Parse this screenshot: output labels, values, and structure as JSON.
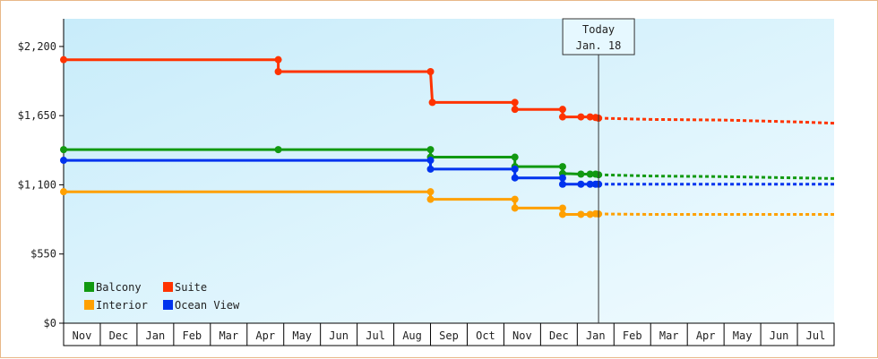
{
  "chart_data": {
    "type": "line",
    "title": "",
    "xlabel": "",
    "ylabel": "",
    "ylim": [
      0,
      2420
    ],
    "y_ticks": [
      "$0",
      "$550",
      "$1,100",
      "$1,650",
      "$2,200"
    ],
    "y_tick_values": [
      0,
      550,
      1100,
      1650,
      2200
    ],
    "x_tick_labels": [
      "Nov",
      "Dec",
      "Jan",
      "Feb",
      "Mar",
      "Apr",
      "May",
      "Jun",
      "Jul",
      "Aug",
      "Sep",
      "Oct",
      "Nov",
      "Dec",
      "Jan",
      "Feb",
      "Mar",
      "Apr",
      "May",
      "Jun",
      "Jul"
    ],
    "x_range_months": [
      0,
      21
    ],
    "grid": false,
    "legend_position": "bottom-left",
    "today": {
      "line1": "Today",
      "line2": "Jan. 18",
      "x": 14.58
    },
    "colors": {
      "Balcony": "#119911",
      "Suite": "#ff3300",
      "Interior": "#ffa000",
      "Ocean View": "#0033ee"
    },
    "series": [
      {
        "name": "Balcony",
        "points": [
          [
            0,
            1380
          ],
          [
            5.85,
            1380
          ],
          [
            10.0,
            1380
          ],
          [
            10.0,
            1320
          ],
          [
            12.3,
            1320
          ],
          [
            12.3,
            1245
          ],
          [
            13.6,
            1245
          ],
          [
            13.6,
            1190
          ],
          [
            14.1,
            1185
          ],
          [
            14.35,
            1185
          ],
          [
            14.5,
            1185
          ],
          [
            14.58,
            1180
          ]
        ],
        "forecast": [
          [
            14.58,
            1180
          ],
          [
            16,
            1170
          ],
          [
            18,
            1165
          ],
          [
            20,
            1155
          ],
          [
            21,
            1150
          ]
        ]
      },
      {
        "name": "Suite",
        "points": [
          [
            0,
            2095
          ],
          [
            5.85,
            2095
          ],
          [
            5.85,
            2000
          ],
          [
            10.0,
            2000
          ],
          [
            10.05,
            1755
          ],
          [
            12.3,
            1755
          ],
          [
            12.3,
            1700
          ],
          [
            13.6,
            1700
          ],
          [
            13.6,
            1640
          ],
          [
            14.1,
            1640
          ],
          [
            14.35,
            1640
          ],
          [
            14.5,
            1635
          ],
          [
            14.58,
            1630
          ]
        ],
        "forecast": [
          [
            14.58,
            1630
          ],
          [
            16,
            1620
          ],
          [
            18,
            1615
          ],
          [
            20,
            1600
          ],
          [
            21,
            1590
          ]
        ]
      },
      {
        "name": "Interior",
        "points": [
          [
            0,
            1045
          ],
          [
            10.0,
            1045
          ],
          [
            10.0,
            985
          ],
          [
            12.3,
            985
          ],
          [
            12.3,
            915
          ],
          [
            13.6,
            915
          ],
          [
            13.6,
            865
          ],
          [
            14.1,
            865
          ],
          [
            14.35,
            865
          ],
          [
            14.5,
            870
          ],
          [
            14.58,
            868
          ]
        ],
        "forecast": [
          [
            14.58,
            868
          ],
          [
            16,
            865
          ],
          [
            18,
            865
          ],
          [
            20,
            865
          ],
          [
            21,
            865
          ]
        ]
      },
      {
        "name": "Ocean View",
        "points": [
          [
            0,
            1295
          ],
          [
            10.0,
            1295
          ],
          [
            10.0,
            1225
          ],
          [
            12.3,
            1225
          ],
          [
            12.3,
            1155
          ],
          [
            13.6,
            1155
          ],
          [
            13.6,
            1105
          ],
          [
            14.1,
            1105
          ],
          [
            14.35,
            1105
          ],
          [
            14.5,
            1105
          ],
          [
            14.58,
            1105
          ]
        ],
        "forecast": [
          [
            14.58,
            1105
          ],
          [
            16,
            1105
          ],
          [
            18,
            1105
          ],
          [
            20,
            1105
          ],
          [
            21,
            1105
          ]
        ]
      }
    ],
    "markers": {
      "Balcony": [
        [
          0,
          1380
        ],
        [
          5.85,
          1380
        ],
        [
          10.0,
          1380
        ],
        [
          10.0,
          1320
        ],
        [
          12.3,
          1320
        ],
        [
          12.3,
          1245
        ],
        [
          13.6,
          1245
        ],
        [
          13.6,
          1190
        ],
        [
          14.1,
          1185
        ],
        [
          14.35,
          1185
        ],
        [
          14.5,
          1185
        ],
        [
          14.58,
          1180
        ]
      ],
      "Suite": [
        [
          0,
          2095
        ],
        [
          5.85,
          2095
        ],
        [
          5.85,
          2000
        ],
        [
          10.0,
          2000
        ],
        [
          10.05,
          1755
        ],
        [
          12.3,
          1755
        ],
        [
          12.3,
          1700
        ],
        [
          13.6,
          1700
        ],
        [
          13.6,
          1640
        ],
        [
          14.1,
          1640
        ],
        [
          14.35,
          1640
        ],
        [
          14.5,
          1635
        ],
        [
          14.58,
          1630
        ]
      ],
      "Interior": [
        [
          0,
          1045
        ],
        [
          10.0,
          1045
        ],
        [
          10.0,
          985
        ],
        [
          12.3,
          985
        ],
        [
          12.3,
          915
        ],
        [
          13.6,
          915
        ],
        [
          13.6,
          865
        ],
        [
          14.1,
          865
        ],
        [
          14.35,
          865
        ],
        [
          14.5,
          870
        ],
        [
          14.58,
          868
        ]
      ],
      "Ocean View": [
        [
          0,
          1295
        ],
        [
          10.0,
          1295
        ],
        [
          10.0,
          1225
        ],
        [
          12.3,
          1225
        ],
        [
          12.3,
          1155
        ],
        [
          13.6,
          1155
        ],
        [
          13.6,
          1105
        ],
        [
          14.1,
          1105
        ],
        [
          14.35,
          1105
        ],
        [
          14.5,
          1105
        ],
        [
          14.58,
          1105
        ]
      ]
    },
    "legend": [
      "Balcony",
      "Suite",
      "Interior",
      "Ocean View"
    ]
  }
}
